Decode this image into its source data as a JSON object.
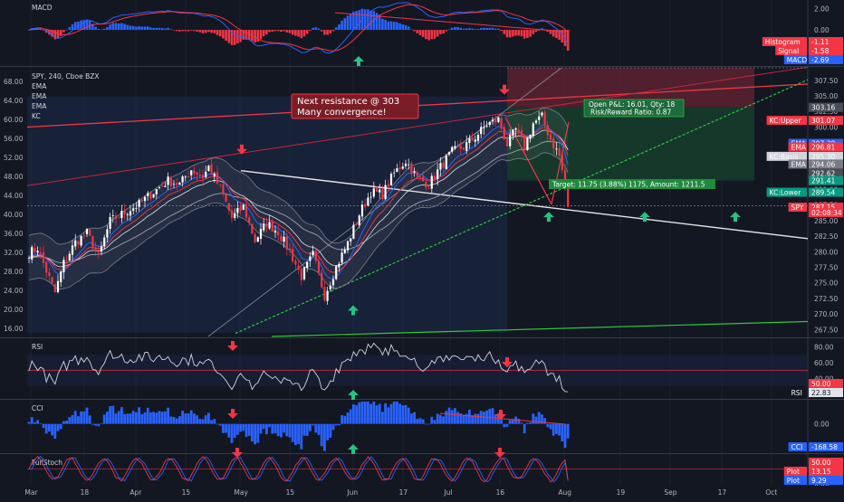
{
  "chart_data": {
    "type": "candlestick",
    "symbol_line": "SPY, 240, Cboe BZX",
    "overlays": [
      "EMA",
      "EMA",
      "EMA",
      "KC"
    ],
    "x_ticks": [
      "Mar",
      "18",
      "Apr",
      "15",
      "May",
      "15",
      "Jun",
      "17",
      "Jul",
      "16",
      "Aug",
      "19",
      "Sep",
      "17",
      "Oct"
    ],
    "y_ticks_price": [
      "307.50",
      "305.00",
      "302.50",
      "300.00",
      "297.50",
      "295.00",
      "292.50",
      "290.00",
      "287.50",
      "285.00",
      "282.50",
      "280.00",
      "277.50",
      "275.00",
      "272.50",
      "270.00",
      "267.50"
    ],
    "y_ticks_left": [
      "68.00",
      "64.00",
      "60.00",
      "56.00",
      "52.00",
      "48.00",
      "44.00",
      "40.00",
      "36.00",
      "32.00",
      "28.00",
      "24.00",
      "20.00",
      "16.00"
    ],
    "price_ylim": [
      266.4,
      309.5
    ],
    "price_path": [
      [
        0,
        279.8
      ],
      [
        3,
        280.6
      ],
      [
        6,
        276.9
      ],
      [
        9,
        273.4
      ],
      [
        12,
        278.2
      ],
      [
        16,
        281.5
      ],
      [
        20,
        283.0
      ],
      [
        24,
        279.2
      ],
      [
        28,
        284.9
      ],
      [
        33,
        286.3
      ],
      [
        38,
        287.6
      ],
      [
        43,
        289.6
      ],
      [
        48,
        291.4
      ],
      [
        52,
        290.8
      ],
      [
        56,
        293.2
      ],
      [
        60,
        292.0
      ],
      [
        62,
        293.6
      ],
      [
        66,
        290.2
      ],
      [
        70,
        285.4
      ],
      [
        74,
        287.2
      ],
      [
        78,
        281.8
      ],
      [
        82,
        284.6
      ],
      [
        86,
        283.2
      ],
      [
        90,
        280.0
      ],
      [
        94,
        276.0
      ],
      [
        98,
        279.5
      ],
      [
        102,
        273.0
      ],
      [
        106,
        277.5
      ],
      [
        110,
        281.4
      ],
      [
        114,
        286.0
      ],
      [
        118,
        289.6
      ],
      [
        122,
        289.2
      ],
      [
        126,
        292.6
      ],
      [
        130,
        294.6
      ],
      [
        134,
        291.8
      ],
      [
        138,
        290.8
      ],
      [
        142,
        293.6
      ],
      [
        146,
        296.0
      ],
      [
        150,
        296.8
      ],
      [
        154,
        298.4
      ],
      [
        158,
        300.4
      ],
      [
        162,
        301.2
      ],
      [
        165,
        297.2
      ],
      [
        168,
        299.6
      ],
      [
        171,
        296.8
      ],
      [
        174,
        300.6
      ],
      [
        177,
        301.6
      ],
      [
        180,
        298.0
      ],
      [
        183,
        295.4
      ],
      [
        185,
        290.6
      ],
      [
        186,
        287.1
      ]
    ],
    "annotations": [
      "Next resistance @ 303",
      "Many convergence!",
      "Open P&L: 16.01, Qty: 18",
      "Risk/Reward Ratio: 0.87",
      "Target: 11.75 (3.88%) 1175, Amount: 1211.5"
    ],
    "price_labels": [
      {
        "label": "",
        "value": "303.16",
        "color": "#4a4d57"
      },
      {
        "label": "KC:Upper",
        "value": "301.07",
        "color": "#f23645"
      },
      {
        "label": "EMA",
        "value": "297.38",
        "color": "#2962ff"
      },
      {
        "label": "EMA",
        "value": "296.81",
        "color": "#f23645"
      },
      {
        "label": "KC:Basis",
        "value": "295.30",
        "color": "#d1d4dc"
      },
      {
        "label": "EMA",
        "value": "294.06",
        "color": "#787b86"
      },
      {
        "label": "",
        "value": "292.62",
        "color": "#4a4d57"
      },
      {
        "label": "",
        "value": "291.41",
        "color": "#089981"
      },
      {
        "label": "KC:Lower",
        "value": "289.54",
        "color": "#089981"
      },
      {
        "label": "SPY",
        "value": "287.15",
        "color": "#f23645"
      },
      {
        "label": "",
        "value": "02:08:34",
        "color": "#f23645"
      }
    ],
    "macd": {
      "title": "MACD",
      "y_ticks": [
        "2.00",
        "0.00",
        "-2.00"
      ],
      "ylim": [
        -3.3,
        2.8
      ],
      "labels": [
        {
          "label": "Histogram",
          "value": "-1.11",
          "color": "#f23645"
        },
        {
          "label": "Signal",
          "value": "-1.58",
          "color": "#f23645"
        },
        {
          "label": "MACD",
          "value": "-2.69",
          "color": "#2962ff"
        }
      ]
    },
    "rsi": {
      "title": "RSI",
      "y_ticks": [
        "80.00",
        "60.00",
        "40.00"
      ],
      "ylim": [
        15,
        90
      ],
      "overbought": 70,
      "oversold": 30,
      "labels": [
        {
          "label": "",
          "value": "50.00",
          "color": "#f23645"
        },
        {
          "label": "RSI",
          "value": "22.83",
          "color": "#131722"
        }
      ]
    },
    "cci": {
      "title": "CCI",
      "y_ticks": [
        "0.00",
        "-250.00"
      ],
      "ylim": [
        -330,
        270
      ],
      "labels": [
        {
          "label": "CCI",
          "value": "-168.58",
          "color": "#2962ff"
        }
      ]
    },
    "fullstoch": {
      "title": "FullStoch",
      "y_ticks": [
        "50.00",
        "0.00"
      ],
      "ylim": [
        -8,
        100
      ],
      "labels": [
        {
          "label": "",
          "value": "50.00",
          "color": "#f23645"
        },
        {
          "label": "Plot",
          "value": "13.15",
          "color": "#f23645"
        },
        {
          "label": "Plot",
          "value": "9.29",
          "color": "#2962ff"
        }
      ]
    }
  },
  "colors": {
    "background": "#131722",
    "grid": "#1e2230",
    "pane_border": "#363a45",
    "up": "#ffffff",
    "down": "#f23645",
    "accent_red": "#f23645",
    "accent_green": "#26a69a",
    "blue": "#2962ff",
    "text": "#b2b5be"
  }
}
